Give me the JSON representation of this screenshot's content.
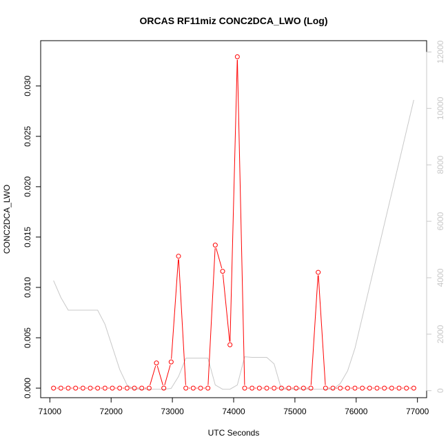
{
  "chart_data": {
    "type": "line",
    "title": "ORCAS RF11miz CONC2DCA_LWO (Log)",
    "xlabel": "UTC Seconds",
    "ylabel": "CONC2DCA_LWO",
    "xlim": [
      70850,
      77150
    ],
    "ylim": [
      -0.00095,
      0.0345
    ],
    "y2lim": [
      -250,
      12400
    ],
    "x_ticks": [
      71000,
      72000,
      73000,
      74000,
      75000,
      76000,
      77000
    ],
    "y_ticks": [
      0.0,
      0.005,
      0.01,
      0.015,
      0.02,
      0.025,
      0.03
    ],
    "y_tick_labels": [
      "0.000",
      "0.005",
      "0.010",
      "0.015",
      "0.020",
      "0.025",
      "0.030"
    ],
    "y2_ticks": [
      0,
      2000,
      4000,
      6000,
      8000,
      10000,
      12000
    ],
    "y2_tick_labels": [
      "0",
      "2000",
      "4000",
      "6000",
      "8000",
      "10000",
      "12000"
    ],
    "grid": false,
    "series": [
      {
        "color": "#ff0000",
        "marker": "circle-open",
        "axis": "left",
        "x": [
          71060,
          71180,
          71300,
          71420,
          71540,
          71660,
          71780,
          71900,
          72020,
          72140,
          72260,
          72380,
          72500,
          72620,
          72740,
          72860,
          72980,
          73100,
          73220,
          73340,
          73460,
          73580,
          73700,
          73820,
          73940,
          74060,
          74180,
          74300,
          74420,
          74540,
          74660,
          74780,
          74900,
          75020,
          75140,
          75260,
          75380,
          75500,
          75620,
          75740,
          75860,
          75980,
          76100,
          76220,
          76340,
          76460,
          76580,
          76700,
          76820,
          76940
        ],
        "values": [
          0,
          0,
          0,
          0,
          0,
          0,
          0,
          0,
          0,
          0,
          0,
          0,
          0,
          0,
          0.0025,
          0,
          0.0026,
          0.0131,
          0,
          0,
          0,
          0,
          0.0142,
          0.0116,
          0.0043,
          0.0329,
          0,
          0,
          0,
          0,
          0,
          0,
          0,
          0,
          0,
          0,
          0.0115,
          0,
          0,
          0,
          0,
          0,
          0,
          0,
          0,
          0,
          0,
          0,
          0,
          0
        ]
      },
      {
        "color": "#c8c8c8",
        "marker": "none",
        "axis": "right",
        "x": [
          71060,
          71180,
          71300,
          71420,
          71540,
          71660,
          71780,
          71900,
          72020,
          72140,
          72260,
          72380,
          72500,
          72620,
          72740,
          72860,
          72980,
          73100,
          73220,
          73340,
          73460,
          73580,
          73700,
          73820,
          73940,
          74060,
          74180,
          74300,
          74420,
          74540,
          74660,
          74780,
          74900,
          75020,
          75140,
          75260,
          75380,
          75500,
          75620,
          75740,
          75860,
          75980,
          76100,
          76220,
          76340,
          76460,
          76580,
          76700,
          76820,
          76940
        ],
        "values": [
          3900,
          3300,
          2850,
          2850,
          2850,
          2850,
          2850,
          2350,
          1550,
          750,
          200,
          50,
          50,
          50,
          50,
          50,
          80,
          500,
          1150,
          1150,
          1150,
          1150,
          200,
          50,
          50,
          200,
          1200,
          1180,
          1180,
          1180,
          950,
          50,
          50,
          50,
          50,
          50,
          50,
          50,
          50,
          250,
          700,
          1500,
          2600,
          3700,
          4800,
          5900,
          7000,
          8100,
          9200,
          10300
        ]
      }
    ]
  }
}
